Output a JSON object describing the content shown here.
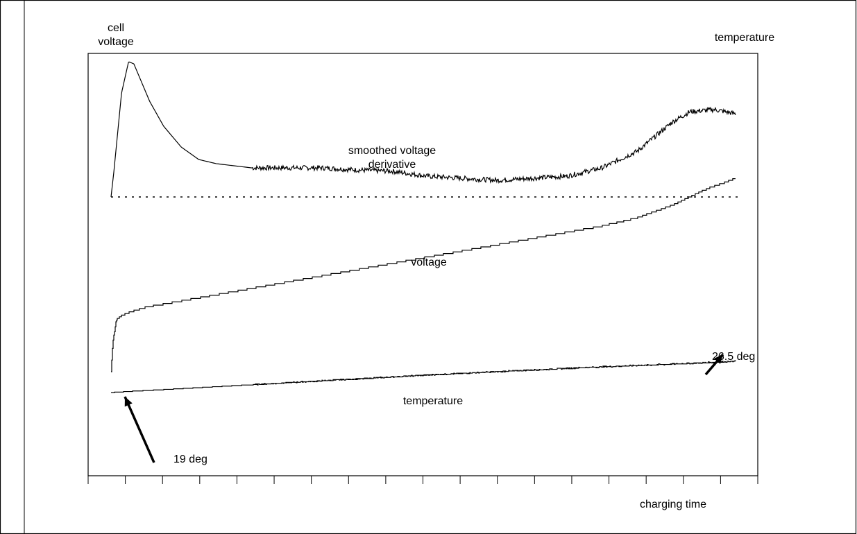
{
  "chart_data": {
    "type": "line",
    "title": "",
    "y_label_left": [
      "cell",
      "voltage"
    ],
    "y_label_right": "temperature",
    "xlabel": "charging time",
    "x_ticks": 19,
    "xlim": [
      0,
      18
    ],
    "ylim": [
      0,
      100
    ],
    "legend": "none",
    "grid": false,
    "series": [
      {
        "name": "smoothed voltage derivative",
        "label_lines": [
          "smoothed voltage",
          "derivative"
        ],
        "x": [
          0,
          0.08,
          0.3,
          0.5,
          0.65,
          0.8,
          1.1,
          1.5,
          2.0,
          2.5,
          3.0,
          4.0,
          5.0,
          6.0,
          7.0,
          8.0,
          9.0,
          10.0,
          11.0,
          12.0,
          13.0,
          14.0,
          15.0,
          16.0,
          16.5,
          17.2,
          17.5,
          17.8
        ],
        "y": [
          66,
          72,
          91,
          98.5,
          98,
          95,
          89,
          83,
          78,
          75,
          74,
          73,
          73,
          73,
          72.5,
          72.2,
          71,
          70.5,
          70,
          70.5,
          71,
          73,
          77,
          84,
          86.5,
          87,
          86.5,
          86
        ],
        "jitter": 0.6,
        "jitter_from": 4
      },
      {
        "name": "voltage",
        "label_lines": [
          "voltage"
        ],
        "x": [
          0,
          0.05,
          0.15,
          0.3,
          0.6,
          1.0,
          2.0,
          3.0,
          4.0,
          5.0,
          6.0,
          7.0,
          8.0,
          9.0,
          10.0,
          11.0,
          12.0,
          13.0,
          14.0,
          15.0,
          16.0,
          17.0,
          17.5,
          17.8
        ],
        "y": [
          24,
          31,
          36.5,
          37.5,
          38.5,
          39.5,
          41,
          42.5,
          44,
          45.5,
          47,
          48.5,
          50,
          51.5,
          53,
          54.5,
          56,
          57.5,
          59,
          61,
          64,
          68,
          69.5,
          70.5
        ],
        "steps": 0.4
      },
      {
        "name": "temperature",
        "label_lines": [
          "temperature"
        ],
        "x": [
          0,
          0.6,
          1.5,
          3.0,
          4.5,
          6.0,
          7.5,
          9.0,
          10.5,
          12.0,
          13.5,
          15.0,
          16.5,
          17.5,
          17.8
        ],
        "y": [
          19,
          19.3,
          19.7,
          20.4,
          21.1,
          21.8,
          22.5,
          23.2,
          23.8,
          24.4,
          25.0,
          25.5,
          26.0,
          26.4,
          26.5
        ],
        "steps": 0.13,
        "jitter": 0.12,
        "jitter_from": 4
      }
    ],
    "zero_line": {
      "value": 66,
      "style": "dotted"
    },
    "annotations": [
      {
        "text": "19 deg",
        "at": {
          "x": 0,
          "y": 19
        },
        "arrow_from": "lower-right"
      },
      {
        "text": "26.5 deg",
        "at": {
          "x": 17.8,
          "y": 26.5
        },
        "arrow_from": "upper-left"
      }
    ]
  }
}
